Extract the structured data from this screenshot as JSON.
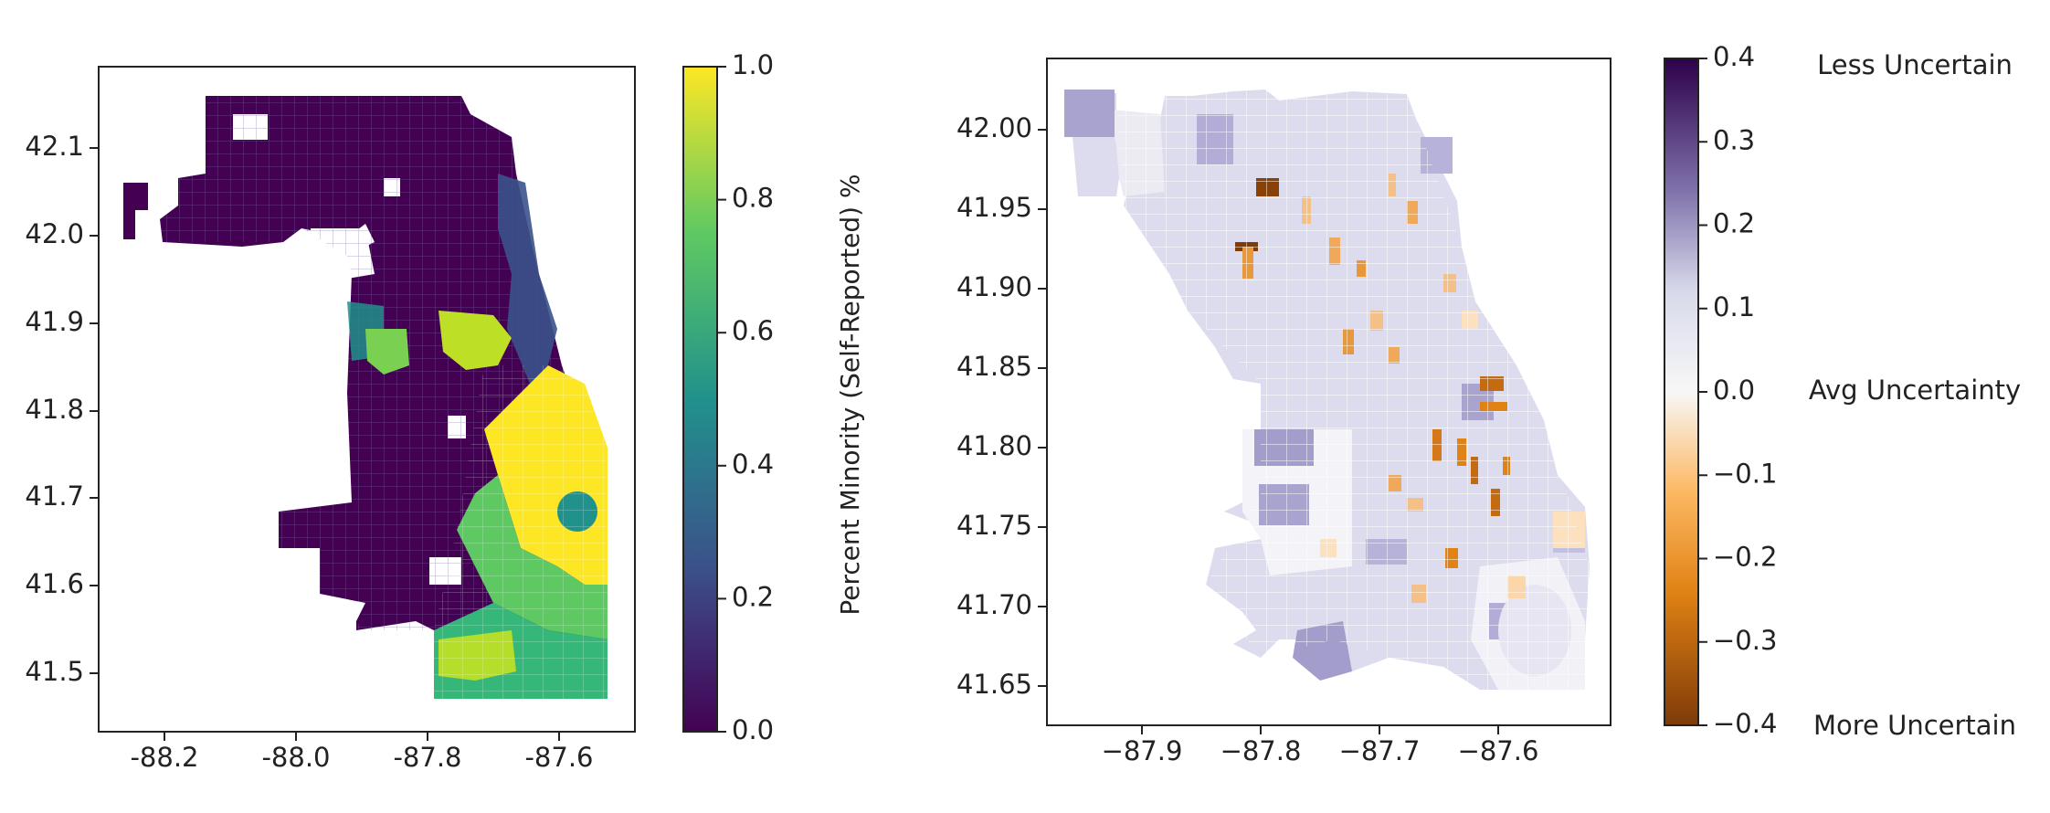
{
  "maps": [
    {
      "name": "percent-minority-map",
      "x_ticks": [
        "-88.2",
        "-88.0",
        "-87.8",
        "-87.6"
      ],
      "y_ticks": [
        "42.1",
        "42.0",
        "41.9",
        "41.8",
        "41.7",
        "41.6",
        "41.5"
      ],
      "colorbar": {
        "label": "Percent Minority (Self-Reported) %",
        "ticks": [
          "1.0",
          "0.8",
          "0.6",
          "0.4",
          "0.2",
          "0.0"
        ],
        "colormap": [
          "#440154",
          "#3b528b",
          "#21918c",
          "#5ec962",
          "#fde725"
        ]
      }
    },
    {
      "name": "uncertainty-map",
      "x_ticks": [
        "−87.9",
        "−87.8",
        "−87.7",
        "−87.6"
      ],
      "y_ticks": [
        "42.00",
        "41.95",
        "41.90",
        "41.85",
        "41.80",
        "41.75",
        "41.70",
        "41.65"
      ],
      "colorbar": {
        "ticks": [
          "0.4",
          "0.3",
          "0.2",
          "0.1",
          "0.0",
          "−0.1",
          "−0.2",
          "−0.3",
          "−0.4"
        ],
        "colormap": [
          "#2d004b",
          "#8073ac",
          "#d8daeb",
          "#f7f7f7",
          "#fdb863",
          "#e08214",
          "#7f3b08"
        ],
        "annotations": {
          "top": "Less Uncertain",
          "middle": "Avg Uncertainty",
          "bottom": "More Uncertain"
        }
      }
    }
  ]
}
